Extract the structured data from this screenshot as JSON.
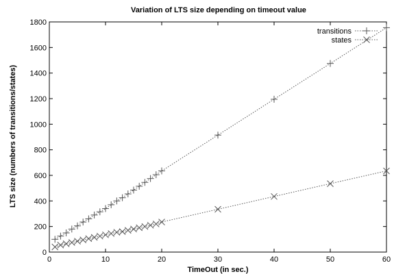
{
  "chart_data": {
    "type": "line",
    "title": "Variation of LTS size depending on timeout value",
    "xlabel": "TimeOut (in sec.)",
    "ylabel": "LTS size (numbers of transitions/states)",
    "xlim": [
      0,
      60
    ],
    "ylim": [
      0,
      1800
    ],
    "xticks": [
      0,
      10,
      20,
      30,
      40,
      50,
      60
    ],
    "yticks": [
      0,
      200,
      400,
      600,
      800,
      1000,
      1200,
      1400,
      1600,
      1800
    ],
    "grid": false,
    "legend_position": "top-right",
    "series": [
      {
        "name": "transitions",
        "marker": "plus",
        "x": [
          1,
          2,
          3,
          4,
          5,
          6,
          7,
          8,
          9,
          10,
          11,
          12,
          13,
          14,
          15,
          16,
          17,
          18,
          19,
          20,
          30,
          40,
          50,
          60
        ],
        "y": [
          100,
          125,
          150,
          180,
          205,
          235,
          260,
          290,
          315,
          340,
          370,
          400,
          425,
          455,
          485,
          515,
          545,
          575,
          605,
          635,
          915,
          1195,
          1475,
          1755
        ]
      },
      {
        "name": "states",
        "marker": "cross",
        "x": [
          1,
          2,
          3,
          4,
          5,
          6,
          7,
          8,
          9,
          10,
          11,
          12,
          13,
          14,
          15,
          16,
          17,
          18,
          19,
          20,
          30,
          40,
          50,
          60
        ],
        "y": [
          40,
          55,
          65,
          75,
          85,
          95,
          105,
          115,
          125,
          135,
          145,
          155,
          160,
          170,
          180,
          190,
          200,
          210,
          220,
          235,
          335,
          435,
          535,
          635
        ]
      }
    ]
  }
}
